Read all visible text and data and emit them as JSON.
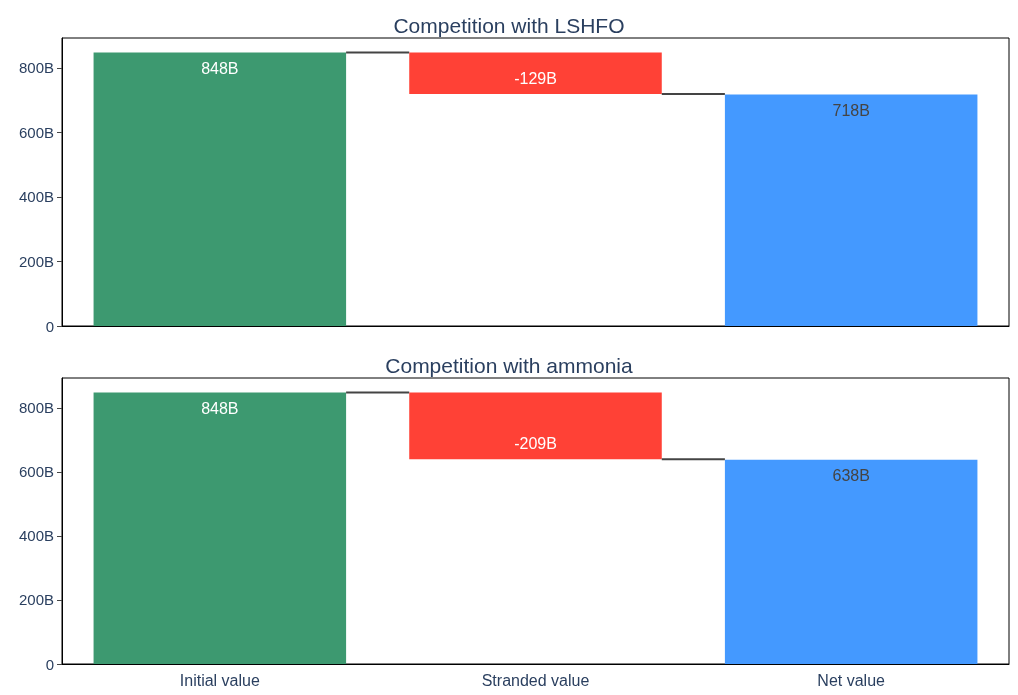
{
  "chart_data": [
    {
      "type": "bar",
      "title": "Competition with LSHFO",
      "categories": [
        null,
        null,
        null
      ],
      "values": [
        848,
        -129,
        718
      ],
      "base": [
        0,
        848,
        0
      ],
      "colors": [
        "#3d9970",
        "#ff4136",
        "#4499ff"
      ],
      "value_labels": [
        "848B",
        "-129B",
        "718B"
      ],
      "ylim": [
        0,
        893
      ],
      "yticks": [
        0,
        {
          "value": 200,
          "label": "200B"
        },
        {
          "value": 400,
          "label": "400B"
        },
        {
          "value": 600,
          "label": "600B"
        },
        {
          "value": 800,
          "label": "800B"
        }
      ],
      "tick_labels": "y"
    },
    {
      "type": "bar",
      "title": "Competition with ammonia",
      "categories": [
        "Initial value",
        "Stranded value",
        "Net value"
      ],
      "values": [
        848,
        -209,
        638
      ],
      "base": [
        0,
        848,
        0
      ],
      "colors": [
        "#3d9970",
        "#ff4136",
        "#4499ff"
      ],
      "value_labels": [
        "848B",
        "-209B",
        "638B"
      ],
      "ylim": [
        0,
        893
      ],
      "yticks": [
        0,
        {
          "value": 200,
          "label": "200B"
        },
        {
          "value": 400,
          "label": "400B"
        },
        {
          "value": 600,
          "label": "600B"
        },
        {
          "value": 800,
          "label": "800B"
        }
      ]
    }
  ]
}
